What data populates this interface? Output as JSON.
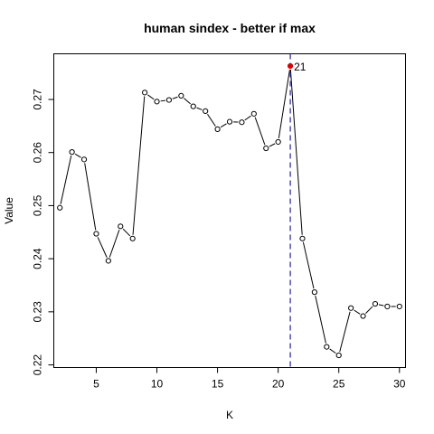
{
  "chart_data": {
    "type": "line",
    "title": "human sindex - better if  max",
    "xlabel": "K",
    "ylabel": "Value",
    "xlim": [
      1.5,
      30.5
    ],
    "ylim": [
      0.2195,
      0.2786
    ],
    "x_ticks": [
      5,
      10,
      15,
      20,
      25,
      30
    ],
    "x_tick_labels": [
      "5",
      "10",
      "15",
      "20",
      "25",
      "30"
    ],
    "y_ticks": [
      0.22,
      0.23,
      0.24,
      0.25,
      0.26,
      0.27
    ],
    "y_tick_labels": [
      "0.22",
      "0.23",
      "0.24",
      "0.25",
      "0.26",
      "0.27"
    ],
    "series": [
      {
        "x": [
          2,
          3,
          4,
          5,
          6,
          7,
          8,
          9,
          10,
          11,
          12,
          13,
          14,
          15,
          16,
          17,
          18,
          19,
          20,
          21,
          22,
          23,
          24,
          25,
          26,
          27,
          28,
          29,
          30
        ],
        "values": [
          0.2496,
          0.2601,
          0.2587,
          0.2447,
          0.2396,
          0.2461,
          0.2438,
          0.2713,
          0.2696,
          0.2699,
          0.2707,
          0.2687,
          0.2678,
          0.2644,
          0.2658,
          0.2657,
          0.2673,
          0.2608,
          0.262,
          0.2763,
          0.2438,
          0.2337,
          0.2234,
          0.2218,
          0.2307,
          0.2292,
          0.2315,
          0.231,
          0.231
        ]
      }
    ],
    "highlight": {
      "x": 21,
      "y": 0.2763,
      "label": "21",
      "color": "#dd0000"
    },
    "vline": {
      "x": 21,
      "color": "#2020a0",
      "style": "dashed"
    },
    "grid": false,
    "legend": "none"
  }
}
